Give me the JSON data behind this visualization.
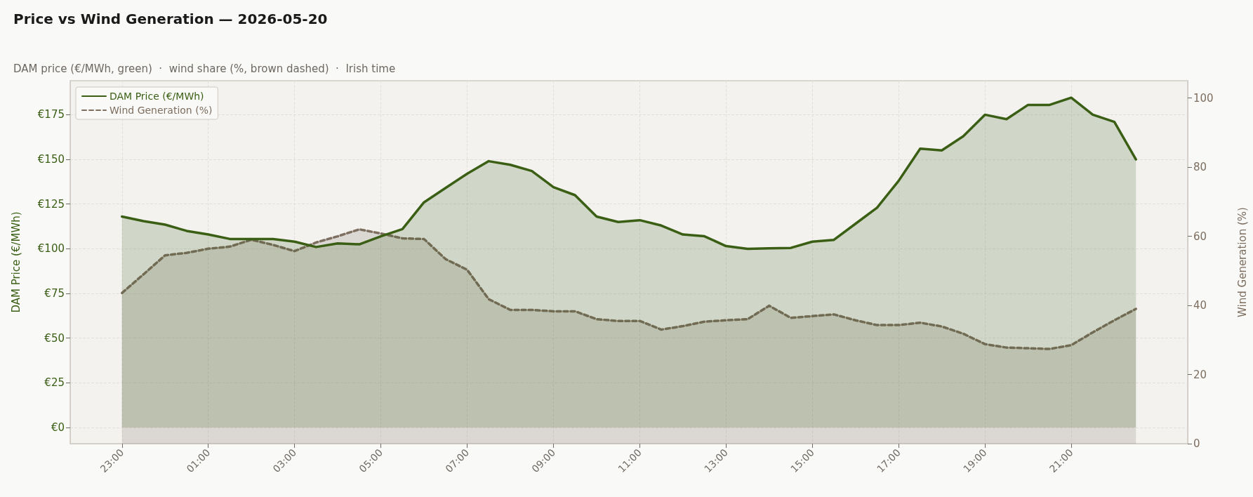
{
  "chart_data": {
    "type": "area",
    "title": "Price vs Wind Generation — 2026-05-20",
    "subtitle": "DAM price (€/MWh, green)  ·  wind share (%, brown dashed)  ·  Irish time",
    "ylabel": "DAM Price (€/MWh)",
    "y2label": "Wind Generation (%)",
    "categories": [
      "23:00",
      null,
      null,
      null,
      "01:00",
      null,
      null,
      null,
      "03:00",
      null,
      null,
      null,
      "05:00",
      null,
      null,
      null,
      "07:00",
      null,
      null,
      null,
      "09:00",
      null,
      null,
      null,
      "11:00",
      null,
      null,
      null,
      "13:00",
      null,
      null,
      null,
      "15:00",
      null,
      null,
      null,
      "17:00",
      null,
      null,
      null,
      "19:00",
      null,
      null,
      null,
      "21:00",
      null,
      null,
      null
    ],
    "series": [
      {
        "name": "DAM Price (€/MWh)",
        "color": "#3a5f14",
        "line_style": "solid",
        "values": [
          118,
          115.5,
          113.5,
          110,
          108,
          105.5,
          105.5,
          105.5,
          104,
          101,
          103,
          102.5,
          107,
          111,
          126,
          134,
          142,
          149,
          147,
          143.5,
          134.5,
          130,
          118,
          115,
          116,
          113,
          108,
          107,
          101.5,
          100,
          100.3,
          100.5,
          104,
          105,
          114,
          123,
          138,
          156,
          155,
          163,
          175,
          172.5,
          180.5,
          180.5,
          184.5,
          175,
          171,
          150
        ]
      },
      {
        "name": "Wind Generation (%)",
        "color": "#7d6e60",
        "line_style": "dashed",
        "axis": "y2",
        "values": [
          43.6,
          49,
          54.5,
          55.2,
          56.4,
          57,
          59,
          57.5,
          55.7,
          58.2,
          60,
          62,
          60.8,
          59.4,
          59.2,
          53.4,
          50.3,
          41.8,
          38.7,
          38.7,
          38.3,
          38.3,
          36,
          35.5,
          35.5,
          33,
          34,
          35.3,
          35.7,
          36,
          39.9,
          36.4,
          36.9,
          37.4,
          35.7,
          34.3,
          34.3,
          35,
          33.9,
          31.8,
          28.8,
          27.8,
          27.6,
          27.4,
          28.5,
          32.2,
          35.7,
          39
        ]
      }
    ],
    "ylim": [
      -9,
      194
    ],
    "yticks": [
      {
        "value": 0,
        "label": "€0"
      },
      {
        "value": 25,
        "label": "€25"
      },
      {
        "value": 50,
        "label": "€50"
      },
      {
        "value": 75,
        "label": "€75"
      },
      {
        "value": 100,
        "label": "€100"
      },
      {
        "value": 125,
        "label": "€125"
      },
      {
        "value": 150,
        "label": "€150"
      },
      {
        "value": 175,
        "label": "€175"
      }
    ],
    "y2lim": [
      0,
      105
    ],
    "y2ticks": [
      0,
      20,
      40,
      60,
      80,
      100
    ],
    "grid": true,
    "legend": "top left",
    "marker": "none"
  }
}
